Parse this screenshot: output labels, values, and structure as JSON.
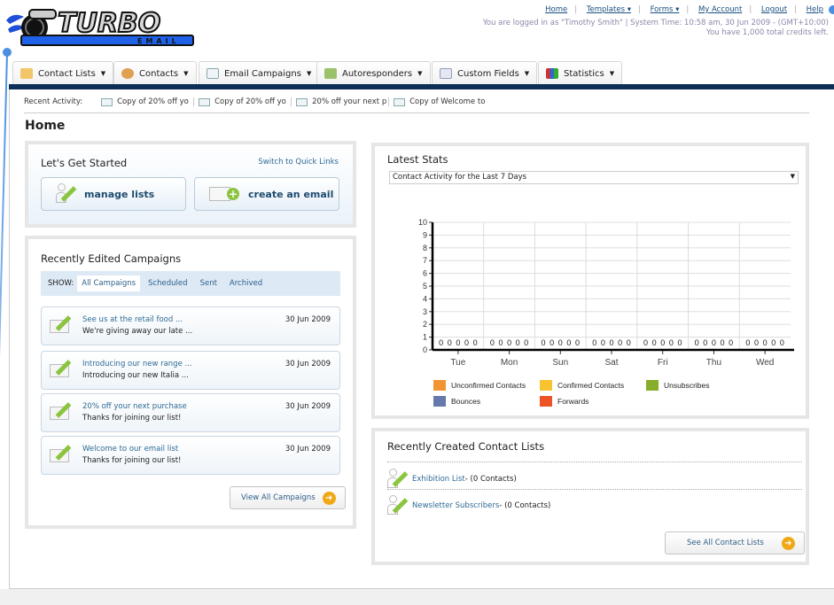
{
  "logo": {
    "text": "TURBO",
    "subtext": "EMAIL"
  },
  "header": {
    "links": [
      {
        "label": "Home"
      },
      {
        "label": "Templates",
        "dropdown": true
      },
      {
        "label": "Forms",
        "dropdown": true
      },
      {
        "label": "My Account"
      },
      {
        "label": "Logout"
      },
      {
        "label": "Help"
      }
    ],
    "status_line": "You are logged in as \"Timothy Smith\" | System Time: 10:58 am, 30 Jun 2009 - (GMT+10:00)",
    "credits_line": "You have 1,000 total credits left."
  },
  "nav": {
    "tabs": [
      {
        "label": "Contact Lists",
        "icon": "contact-lists-icon"
      },
      {
        "label": "Contacts",
        "icon": "contacts-icon"
      },
      {
        "label": "Email Campaigns",
        "icon": "envelope-icon"
      },
      {
        "label": "Autoresponders",
        "icon": "autoresponder-icon"
      },
      {
        "label": "Custom Fields",
        "icon": "custom-fields-icon"
      },
      {
        "label": "Statistics",
        "icon": "statistics-icon"
      }
    ],
    "bar_color": "#0c2e57"
  },
  "recent_activity": {
    "label": "Recent Activity:",
    "items": [
      "Copy of 20% off yo",
      "Copy of 20% off yo",
      "20% off your next p",
      "Copy of Welcome to"
    ]
  },
  "page_title": "Home",
  "get_started": {
    "title": "Let's Get Started",
    "switch_link": "Switch to Quick Links",
    "manage_lists": "manage lists",
    "create_email": "create an email"
  },
  "campaigns": {
    "title": "Recently Edited Campaigns",
    "show_label": "SHOW:",
    "filters": [
      "All Campaigns",
      "Scheduled",
      "Sent",
      "Archived"
    ],
    "active_filter": "All Campaigns",
    "items": [
      {
        "name": "See us at the retail food ...",
        "desc": "We're giving away our late ...",
        "date": "30 Jun 2009"
      },
      {
        "name": "Introducing our new range ...",
        "desc": "Introducing our new Italia ...",
        "date": "30 Jun 2009"
      },
      {
        "name": "20% off your next purchase",
        "desc": "Thanks for joining our list!",
        "date": "30 Jun 2009"
      },
      {
        "name": "Welcome to our email list",
        "desc": "Thanks for joining our list!",
        "date": "30 Jun 2009"
      }
    ],
    "view_all": "View All Campaigns"
  },
  "stats": {
    "title": "Latest Stats",
    "select_value": "Contact Activity for the Last 7 Days"
  },
  "chart_data": {
    "type": "bar",
    "categories": [
      "Tue",
      "Mon",
      "Sun",
      "Sat",
      "Fri",
      "Thu",
      "Wed"
    ],
    "series": [
      {
        "name": "Unconfirmed Contacts",
        "color": "#f39433",
        "values": [
          0,
          0,
          0,
          0,
          0,
          0,
          0
        ]
      },
      {
        "name": "Confirmed Contacts",
        "color": "#f7c32e",
        "values": [
          0,
          0,
          0,
          0,
          0,
          0,
          0
        ]
      },
      {
        "name": "Unsubscribes",
        "color": "#86ae2a",
        "values": [
          0,
          0,
          0,
          0,
          0,
          0,
          0
        ]
      },
      {
        "name": "Bounces",
        "color": "#6679ad",
        "values": [
          0,
          0,
          0,
          0,
          0,
          0,
          0
        ]
      },
      {
        "name": "Forwards",
        "color": "#ec5428",
        "values": [
          0,
          0,
          0,
          0,
          0,
          0,
          0
        ]
      }
    ],
    "yticks": [
      "0",
      "1",
      "2",
      "3",
      "4",
      "5",
      "6",
      "7",
      "8",
      "9",
      "10"
    ],
    "ylim": [
      0,
      10
    ],
    "grid": true,
    "legend": "bottom",
    "data_labels": true
  },
  "contact_lists": {
    "title": "Recently Created Contact Lists",
    "items": [
      {
        "name": "Exhibition List",
        "count": " - (0 Contacts)"
      },
      {
        "name": "Newsletter Subscribers",
        "count": " - (0 Contacts)"
      }
    ],
    "see_all": "See All Contact Lists"
  }
}
